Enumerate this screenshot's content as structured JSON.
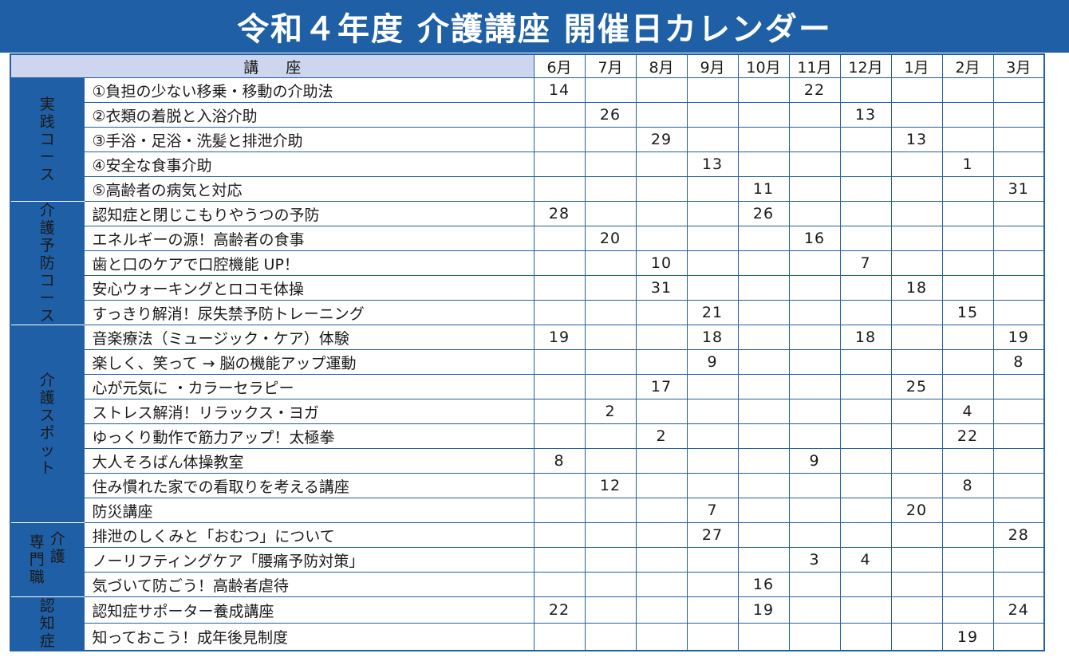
{
  "title": "令和４年度 介護講座 開催日カレンダー",
  "header": {
    "course_label": "講座",
    "months": [
      "6月",
      "7月",
      "8月",
      "9月",
      "10月",
      "11月",
      "12月",
      "1月",
      "2月",
      "3月"
    ]
  },
  "categories": [
    {
      "label": "実践コース",
      "rows": 5
    },
    {
      "label": "介護予防コース",
      "rows": 5
    },
    {
      "label": "介護スポット",
      "rows": 8
    },
    {
      "label_col1": "介護",
      "label_col2": "専門職",
      "rows": 3
    },
    {
      "label": "認知症",
      "rows": 2
    }
  ],
  "courses": [
    {
      "name": "①負担の少ない移乗・移動の介助法",
      "days": [
        "14",
        "",
        "",
        "",
        "",
        "22",
        "",
        "",
        "",
        ""
      ]
    },
    {
      "name": "②衣類の着脱と入浴介助",
      "days": [
        "",
        "26",
        "",
        "",
        "",
        "",
        "13",
        "",
        "",
        ""
      ]
    },
    {
      "name": "③手浴・足浴・洗髪と排泄介助",
      "days": [
        "",
        "",
        "29",
        "",
        "",
        "",
        "",
        "13",
        "",
        ""
      ]
    },
    {
      "name": "④安全な食事介助",
      "days": [
        "",
        "",
        "",
        "13",
        "",
        "",
        "",
        "",
        "1",
        ""
      ]
    },
    {
      "name": "⑤高齢者の病気と対応",
      "days": [
        "",
        "",
        "",
        "",
        "11",
        "",
        "",
        "",
        "",
        "31"
      ]
    },
    {
      "name": "認知症と閉じこもりやうつの予防",
      "days": [
        "28",
        "",
        "",
        "",
        "26",
        "",
        "",
        "",
        "",
        ""
      ]
    },
    {
      "name": "エネルギーの源！高齢者の食事",
      "days": [
        "",
        "20",
        "",
        "",
        "",
        "16",
        "",
        "",
        "",
        ""
      ]
    },
    {
      "name": "歯と口のケアで口腔機能 UP！",
      "days": [
        "",
        "",
        "10",
        "",
        "",
        "",
        "7",
        "",
        "",
        ""
      ]
    },
    {
      "name": "安心ウォーキングとロコモ体操",
      "days": [
        "",
        "",
        "31",
        "",
        "",
        "",
        "",
        "18",
        "",
        ""
      ]
    },
    {
      "name": "すっきり解消！尿失禁予防トレーニング",
      "days": [
        "",
        "",
        "",
        "21",
        "",
        "",
        "",
        "",
        "15",
        ""
      ]
    },
    {
      "name": "音楽療法（ミュージック・ケア）体験",
      "days": [
        "19",
        "",
        "",
        "18",
        "",
        "",
        "18",
        "",
        "",
        "19"
      ]
    },
    {
      "name": "楽しく、笑って → 脳の機能アップ運動",
      "days": [
        "",
        "",
        "",
        "9",
        "",
        "",
        "",
        "",
        "",
        "8"
      ]
    },
    {
      "name": "心が元気に ・カラーセラピー",
      "days": [
        "",
        "",
        "17",
        "",
        "",
        "",
        "",
        "25",
        "",
        ""
      ]
    },
    {
      "name": "ストレス解消！リラックス・ヨガ",
      "days": [
        "",
        "2",
        "",
        "",
        "",
        "",
        "",
        "",
        "4",
        ""
      ]
    },
    {
      "name": "ゆっくり動作で筋力アップ！太極拳",
      "days": [
        "",
        "",
        "2",
        "",
        "",
        "",
        "",
        "",
        "22",
        ""
      ]
    },
    {
      "name": "大人そろばん体操教室",
      "days": [
        "8",
        "",
        "",
        "",
        "",
        "9",
        "",
        "",
        "",
        ""
      ]
    },
    {
      "name": "住み慣れた家での看取りを考える講座",
      "days": [
        "",
        "12",
        "",
        "",
        "",
        "",
        "",
        "",
        "8",
        ""
      ]
    },
    {
      "name": "防災講座",
      "days": [
        "",
        "",
        "",
        "7",
        "",
        "",
        "",
        "20",
        "",
        ""
      ]
    },
    {
      "name": "排泄のしくみと「おむつ」について",
      "days": [
        "",
        "",
        "",
        "27",
        "",
        "",
        "",
        "",
        "",
        "28"
      ]
    },
    {
      "name": "ノーリフティングケア「腰痛予防対策」",
      "days": [
        "",
        "",
        "",
        "",
        "",
        "3",
        "4",
        "",
        "",
        ""
      ]
    },
    {
      "name": "気づいて防ごう！高齢者虐待",
      "days": [
        "",
        "",
        "",
        "",
        "16",
        "",
        "",
        "",
        "",
        ""
      ]
    },
    {
      "name": "認知症サポーター養成講座",
      "days": [
        "22",
        "",
        "",
        "",
        "19",
        "",
        "",
        "",
        "",
        "24"
      ]
    },
    {
      "name": "知っておこう！成年後見制度",
      "days": [
        "",
        "",
        "",
        "",
        "",
        "",
        "",
        "",
        "19",
        ""
      ]
    }
  ],
  "colors": {
    "brand_blue": "#1f5fa6",
    "header_band": "#cdd6ee"
  }
}
